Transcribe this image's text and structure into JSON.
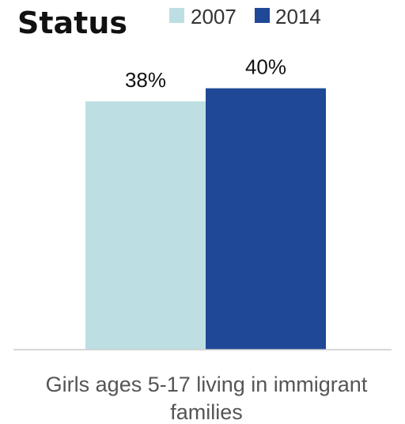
{
  "chart_data": {
    "type": "bar",
    "title": "Status",
    "categories": [
      "Girls ages 5-17 living in immigrant families"
    ],
    "category_lines": [
      "Girls ages 5-17 living in immigrant",
      "families"
    ],
    "series": [
      {
        "name": "2007",
        "values": [
          38
        ],
        "label": "38%",
        "color": "#bddfe3"
      },
      {
        "name": "2014",
        "values": [
          40
        ],
        "label": "40%",
        "color": "#1f4896"
      }
    ],
    "ylim": [
      0,
      100
    ],
    "grid": false,
    "legend_position": "top"
  }
}
